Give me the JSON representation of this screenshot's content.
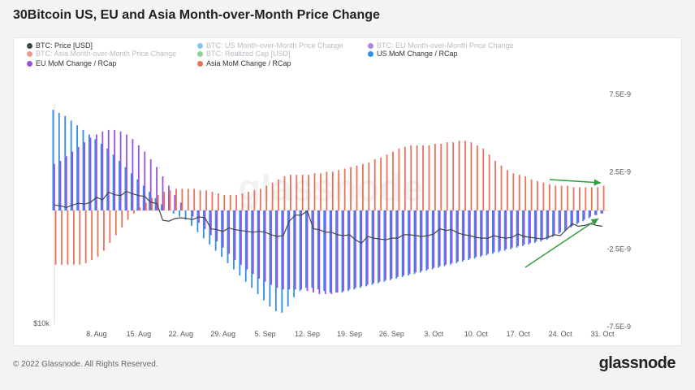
{
  "header": {
    "title": "30Bitcoin US, EU and Asia Month-over-Month Price Change"
  },
  "legend": [
    {
      "label": "BTC: Price [USD]",
      "color": "#444444",
      "faded": false
    },
    {
      "label": "BTC: US Month-over-Month Price Change",
      "color": "#2f8fe8",
      "faded": true
    },
    {
      "label": "BTC: EU Month-over-Month Price Change",
      "color": "#6a1fd6",
      "faded": true
    },
    {
      "label": "BTC: Asia Month-over-Month Price Change",
      "color": "#e8452a",
      "faded": true
    },
    {
      "label": "BTC: Realized Cap [USD]",
      "color": "#3aa845",
      "faded": true
    },
    {
      "label": "US MoM Change / RCap",
      "color": "#2f8fe8",
      "faded": false
    },
    {
      "label": "EU MoM Change / RCap",
      "color": "#9a4fe0",
      "faded": false
    },
    {
      "label": "Asia MoM Change / RCap",
      "color": "#e9735a",
      "faded": false
    }
  ],
  "chart_data": {
    "type": "bar",
    "x": [
      "Aug 1",
      "Aug 2",
      "Aug 3",
      "Aug 4",
      "Aug 5",
      "Aug 6",
      "Aug 7",
      "Aug 8",
      "Aug 9",
      "Aug 10",
      "Aug 11",
      "Aug 12",
      "Aug 13",
      "Aug 14",
      "Aug 15",
      "Aug 16",
      "Aug 17",
      "Aug 18",
      "Aug 19",
      "Aug 20",
      "Aug 21",
      "Aug 22",
      "Aug 23",
      "Aug 24",
      "Aug 25",
      "Aug 26",
      "Aug 27",
      "Aug 28",
      "Aug 29",
      "Aug 30",
      "Aug 31",
      "Sep 1",
      "Sep 2",
      "Sep 3",
      "Sep 4",
      "Sep 5",
      "Sep 6",
      "Sep 7",
      "Sep 8",
      "Sep 9",
      "Sep 10",
      "Sep 11",
      "Sep 12",
      "Sep 13",
      "Sep 14",
      "Sep 15",
      "Sep 16",
      "Sep 17",
      "Sep 18",
      "Sep 19",
      "Sep 20",
      "Sep 21",
      "Sep 22",
      "Sep 23",
      "Sep 24",
      "Sep 25",
      "Sep 26",
      "Sep 27",
      "Sep 28",
      "Sep 29",
      "Sep 30",
      "Oct 1",
      "Oct 2",
      "Oct 3",
      "Oct 4",
      "Oct 5",
      "Oct 6",
      "Oct 7",
      "Oct 8",
      "Oct 9",
      "Oct 10",
      "Oct 11",
      "Oct 12",
      "Oct 13",
      "Oct 14",
      "Oct 15",
      "Oct 16",
      "Oct 17",
      "Oct 18",
      "Oct 19",
      "Oct 20",
      "Oct 21",
      "Oct 22",
      "Oct 23",
      "Oct 24",
      "Oct 25",
      "Oct 26",
      "Oct 27",
      "Oct 28",
      "Oct 29",
      "Oct 30",
      "Oct 31"
    ],
    "x_ticks": [
      "8. Aug",
      "15. Aug",
      "22. Aug",
      "29. Aug",
      "5. Sep",
      "12. Sep",
      "19. Sep",
      "26. Sep",
      "3. Oct",
      "10. Oct",
      "17. Oct",
      "24. Oct",
      "31. Oct"
    ],
    "y_left_label": "$10k",
    "y_right_ticks": [
      "7.5E-9",
      "2.5E-9",
      "-2.5E-9",
      "-7.5E-9"
    ],
    "ylim": [
      -7.5e-09,
      7.5e-09
    ],
    "watermark": "glassnode",
    "series": [
      {
        "name": "US MoM Change / RCap",
        "values": [
          6.5e-09,
          6.3e-09,
          6.1e-09,
          5.8e-09,
          5.5e-09,
          5.2e-09,
          4.9e-09,
          4.6e-09,
          4.3e-09,
          4e-09,
          3.6e-09,
          3.2e-09,
          2.8e-09,
          2.4e-09,
          2e-09,
          1.6e-09,
          1.2e-09,
          8e-10,
          4e-10,
          0,
          -2e-10,
          -4e-10,
          -6e-10,
          -1e-09,
          -1.4e-09,
          -1.8e-09,
          -2.2e-09,
          -2.6e-09,
          -3e-09,
          -3.4e-09,
          -3.8e-09,
          -4.2e-09,
          -4.6e-09,
          -5e-09,
          -5.4e-09,
          -5.8e-09,
          -6.2e-09,
          -6.5e-09,
          -6.6e-09,
          -6.2e-09,
          -5.6e-09,
          -5.2e-09,
          -5e-09,
          -5e-09,
          -5.1e-09,
          -5.2e-09,
          -5.3e-09,
          -5.3e-09,
          -5.3e-09,
          -5.2e-09,
          -5.1e-09,
          -5e-09,
          -4.9e-09,
          -4.8e-09,
          -4.7e-09,
          -4.6e-09,
          -4.5e-09,
          -4.4e-09,
          -4.3e-09,
          -4.2e-09,
          -4.1e-09,
          -4e-09,
          -3.9e-09,
          -3.8e-09,
          -3.7e-09,
          -3.6e-09,
          -3.5e-09,
          -3.4e-09,
          -3.3e-09,
          -3.2e-09,
          -3.1e-09,
          -3e-09,
          -2.9e-09,
          -2.8e-09,
          -2.7e-09,
          -2.6e-09,
          -2.5e-09,
          -2.4e-09,
          -2.3e-09,
          -2.2e-09,
          -2.1e-09,
          -2e-09,
          -1.9e-09,
          -1.7e-09,
          -1.5e-09,
          -1.3e-09,
          -1.1e-09,
          -9e-10,
          -7e-10,
          -5e-10,
          -3e-10,
          -2e-10
        ]
      },
      {
        "name": "EU MoM Change / RCap",
        "values": [
          3e-09,
          3.2e-09,
          3.5e-09,
          3.8e-09,
          4.1e-09,
          4.4e-09,
          4.7e-09,
          4.9e-09,
          5.1e-09,
          5.2e-09,
          5.2e-09,
          5.1e-09,
          4.9e-09,
          4.6e-09,
          4.2e-09,
          3.8e-09,
          3.3e-09,
          2.8e-09,
          2.2e-09,
          1.6e-09,
          1e-09,
          5e-10,
          0,
          -4e-10,
          -8e-10,
          -1.2e-09,
          -1.6e-09,
          -2e-09,
          -2.4e-09,
          -2.8e-09,
          -3.2e-09,
          -3.5e-09,
          -3.8e-09,
          -4.1e-09,
          -4.4e-09,
          -4.6e-09,
          -4.8e-09,
          -5e-09,
          -5.1e-09,
          -5.1e-09,
          -5.1e-09,
          -5.1e-09,
          -5.2e-09,
          -5.3e-09,
          -5.4e-09,
          -5.4e-09,
          -5.4e-09,
          -5.3e-09,
          -5.2e-09,
          -5.1e-09,
          -5e-09,
          -4.9e-09,
          -4.8e-09,
          -4.7e-09,
          -4.6e-09,
          -4.5e-09,
          -4.4e-09,
          -4.3e-09,
          -4.2e-09,
          -4.1e-09,
          -4e-09,
          -3.9e-09,
          -3.8e-09,
          -3.7e-09,
          -3.6e-09,
          -3.5e-09,
          -3.4e-09,
          -3.3e-09,
          -3.2e-09,
          -3.1e-09,
          -3e-09,
          -2.9e-09,
          -2.8e-09,
          -2.7e-09,
          -2.6e-09,
          -2.5e-09,
          -2.4e-09,
          -2.3e-09,
          -2.2e-09,
          -2.1e-09,
          -2e-09,
          -1.9e-09,
          -1.8e-09,
          -1.6e-09,
          -1.4e-09,
          -1.2e-09,
          -1e-09,
          -8e-10,
          -6e-10,
          -4e-10,
          -3e-10,
          -2e-10
        ]
      },
      {
        "name": "Asia MoM Change / RCap",
        "values": [
          -3.5e-09,
          -3.5e-09,
          -3.5e-09,
          -3.5e-09,
          -3.5e-09,
          -3.4e-09,
          -3.2e-09,
          -3e-09,
          -2.6e-09,
          -2.1e-09,
          -1.6e-09,
          -1.1e-09,
          -6e-10,
          -2e-10,
          2e-10,
          5e-10,
          8e-10,
          1e-09,
          1.2e-09,
          1.3e-09,
          1.4e-09,
          1.4e-09,
          1.4e-09,
          1.4e-09,
          1.3e-09,
          1.3e-09,
          1.2e-09,
          1.1e-09,
          1e-09,
          1e-09,
          1e-09,
          1.1e-09,
          1.2e-09,
          1.3e-09,
          1.4e-09,
          1.6e-09,
          1.8e-09,
          2e-09,
          2.2e-09,
          2.3e-09,
          2.3e-09,
          2.3e-09,
          2.3e-09,
          2.4e-09,
          2.4e-09,
          2.5e-09,
          2.5e-09,
          2.6e-09,
          2.7e-09,
          2.8e-09,
          2.9e-09,
          3e-09,
          3.1e-09,
          3.3e-09,
          3.4e-09,
          3.6e-09,
          3.8e-09,
          4e-09,
          4.1e-09,
          4.2e-09,
          4.2e-09,
          4.2e-09,
          4.2e-09,
          4.3e-09,
          4.3e-09,
          4.4e-09,
          4.4e-09,
          4.5e-09,
          4.5e-09,
          4.4e-09,
          4.2e-09,
          4e-09,
          3.6e-09,
          3.2e-09,
          2.9e-09,
          2.6e-09,
          2.4e-09,
          2.3e-09,
          2.2e-09,
          2e-09,
          1.9e-09,
          1.8e-09,
          1.7e-09,
          1.6e-09,
          1.6e-09,
          1.6e-09,
          1.5e-09,
          1.5e-09,
          1.5e-09,
          1.5e-09,
          1.5e-09,
          1.6e-09
        ]
      },
      {
        "name": "BTC: Price [USD]",
        "type": "line",
        "values": [
          23000,
          22900,
          22700,
          23000,
          23200,
          23100,
          23300,
          23900,
          23600,
          24500,
          24200,
          24100,
          24600,
          24300,
          24100,
          24000,
          23300,
          23200,
          21200,
          21100,
          21400,
          21500,
          21400,
          21300,
          21600,
          21500,
          20200,
          20100,
          19900,
          20300,
          20100,
          20000,
          19900,
          19800,
          19900,
          19800,
          19500,
          19300,
          19400,
          21100,
          21800,
          21800,
          22300,
          20200,
          20100,
          19800,
          19800,
          19500,
          19400,
          19500,
          18900,
          18500,
          19300,
          19100,
          19000,
          18900,
          19100,
          19100,
          19500,
          19500,
          19400,
          19300,
          19400,
          19600,
          20200,
          20000,
          20100,
          19700,
          19500,
          19400,
          19200,
          19100,
          19100,
          19400,
          19200,
          19100,
          19200,
          19600,
          19300,
          19200,
          19100,
          19000,
          19200,
          19500,
          19400,
          20100,
          20800,
          20500,
          20600,
          20800,
          20600,
          20500
        ]
      }
    ],
    "annotations": [
      {
        "type": "arrow",
        "label": "",
        "points_to": "Oct 31 price"
      },
      {
        "type": "arrow",
        "label": "",
        "points_to": "Oct 31 bars"
      }
    ]
  },
  "footer": {
    "copyright": "© 2022 Glassnode. All Rights Reserved.",
    "brand": "glassnode"
  }
}
